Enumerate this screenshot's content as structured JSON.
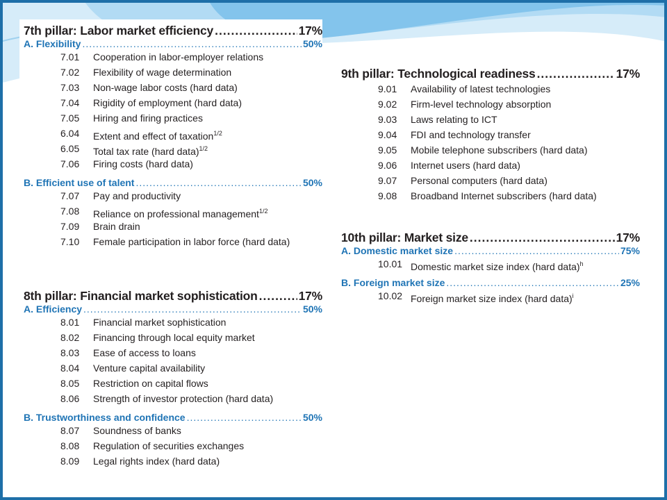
{
  "left": {
    "pillar7": {
      "title": "7th pillar: Labor market efficiency",
      "weight": "17%",
      "groups": [
        {
          "name": "A. Flexibility",
          "weight": "50%",
          "items": [
            {
              "code": "7.01",
              "label": "Cooperation in labor-employer relations"
            },
            {
              "code": "7.02",
              "label": "Flexibility of wage determination"
            },
            {
              "code": "7.03",
              "label": "Non-wage labor costs (hard data)"
            },
            {
              "code": "7.04",
              "label": "Rigidity of employment (hard data)"
            },
            {
              "code": "7.05",
              "label": "Hiring and firing practices"
            },
            {
              "code": "6.04",
              "label": "Extent and effect of taxation",
              "sup": "1/2"
            },
            {
              "code": "6.05",
              "label": "Total tax rate (hard data)",
              "sup": "1/2"
            },
            {
              "code": "7.06",
              "label": "Firing costs (hard data)"
            }
          ]
        },
        {
          "name": "B. Efficient use of talent",
          "weight": "50%",
          "items": [
            {
              "code": "7.07",
              "label": "Pay and productivity"
            },
            {
              "code": "7.08",
              "label": "Reliance on professional management",
              "sup": "1/2"
            },
            {
              "code": "7.09",
              "label": "Brain drain"
            },
            {
              "code": "7.10",
              "label": "Female participation in labor force (hard data)"
            }
          ]
        }
      ]
    },
    "pillar8": {
      "title": "8th pillar: Financial market sophistication",
      "weight": "17%",
      "groups": [
        {
          "name": "A. Efficiency",
          "weight": "50%",
          "items": [
            {
              "code": "8.01",
              "label": "Financial market sophistication"
            },
            {
              "code": "8.02",
              "label": "Financing through local equity market"
            },
            {
              "code": "8.03",
              "label": "Ease of access to loans"
            },
            {
              "code": "8.04",
              "label": "Venture capital availability"
            },
            {
              "code": "8.05",
              "label": "Restriction on capital flows"
            },
            {
              "code": "8.06",
              "label": "Strength of investor protection (hard data)"
            }
          ]
        },
        {
          "name": "B. Trustworthiness and confidence",
          "weight": "50%",
          "items": [
            {
              "code": "8.07",
              "label": "Soundness of banks"
            },
            {
              "code": "8.08",
              "label": "Regulation of securities exchanges"
            },
            {
              "code": "8.09",
              "label": "Legal rights index (hard data)"
            }
          ]
        }
      ]
    }
  },
  "right": {
    "pillar9": {
      "title": "9th pillar: Technological readiness",
      "weight": "17%",
      "items": [
        {
          "code": "9.01",
          "label": "Availability of latest technologies"
        },
        {
          "code": "9.02",
          "label": "Firm-level technology absorption"
        },
        {
          "code": "9.03",
          "label": "Laws relating to ICT"
        },
        {
          "code": "9.04",
          "label": "FDI and technology transfer"
        },
        {
          "code": "9.05",
          "label": "Mobile telephone subscribers (hard data)"
        },
        {
          "code": "9.06",
          "label": "Internet users (hard data)"
        },
        {
          "code": "9.07",
          "label": "Personal computers (hard data)"
        },
        {
          "code": "9.08",
          "label": "Broadband Internet subscribers (hard data)"
        }
      ]
    },
    "pillar10": {
      "title": "10th pillar: Market size",
      "weight": "17%",
      "groups": [
        {
          "name": "A. Domestic market size",
          "weight": "75%",
          "items": [
            {
              "code": "10.01",
              "label": "Domestic market size index (hard data)",
              "sup": "h"
            }
          ]
        },
        {
          "name": "B. Foreign market size",
          "weight": "25%",
          "items": [
            {
              "code": "10.02",
              "label": "Foreign market size index (hard data)",
              "sup": "i"
            }
          ]
        }
      ]
    }
  },
  "colors": {
    "accent_blue": "#1f74b5",
    "text": "#231f20",
    "swoosh_light": "#cfe6f6",
    "swoosh_mid": "#8cc7ec"
  }
}
